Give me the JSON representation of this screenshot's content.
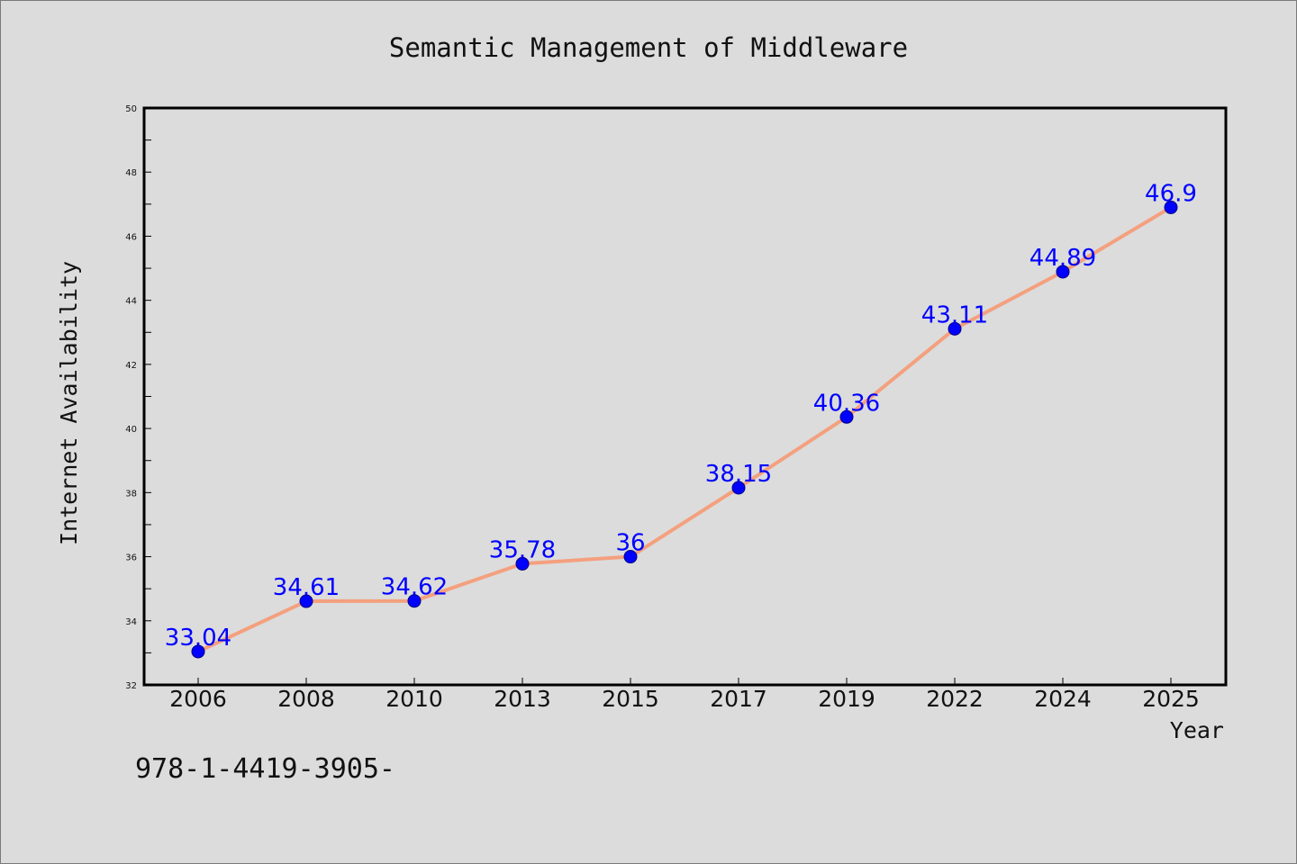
{
  "chart_data": {
    "type": "line",
    "title": "Semantic Management of Middleware",
    "xlabel": "Year",
    "ylabel": "Internet Availability",
    "categories": [
      "2006",
      "2008",
      "2010",
      "2013",
      "2015",
      "2017",
      "2019",
      "2022",
      "2024",
      "2025"
    ],
    "series": [
      {
        "values": [
          33.04,
          34.61,
          34.62,
          35.78,
          36,
          38.15,
          40.36,
          43.11,
          44.89,
          46.9
        ],
        "labels": [
          "33.04",
          "34.61",
          "34.62",
          "35.78",
          "36",
          "38.15",
          "40.36",
          "43.11",
          "44.89",
          "46.9"
        ],
        "line_color": "#f4a07e",
        "marker_color": "#0000ff"
      }
    ],
    "ylim": [
      32,
      50
    ],
    "yticks": [
      "32",
      "34",
      "36",
      "38",
      "40",
      "42",
      "44",
      "46",
      "48",
      "50"
    ],
    "grid": false,
    "legend": "none"
  },
  "footnote": "978-1-4419-3905-"
}
